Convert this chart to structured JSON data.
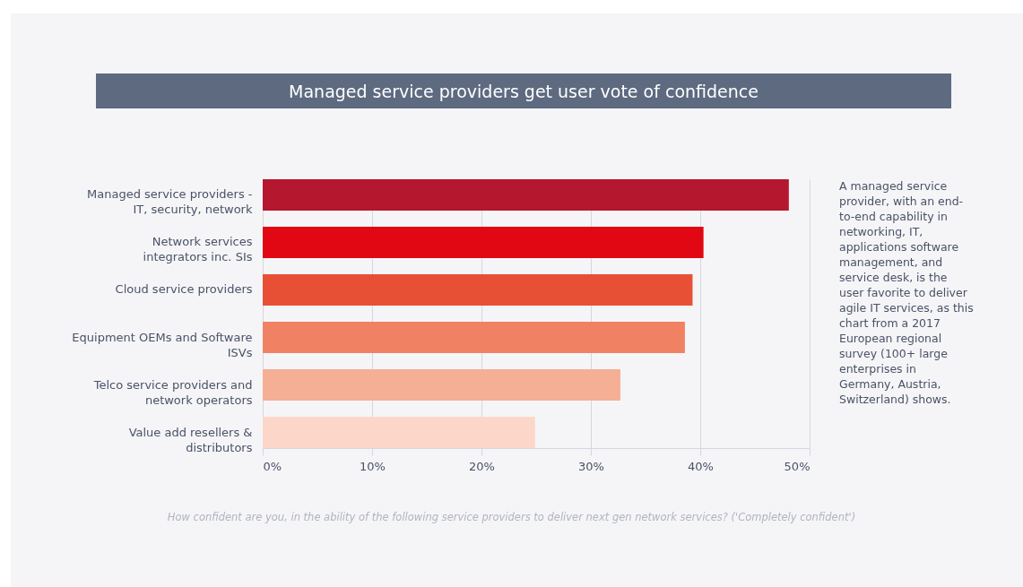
{
  "chart_data": {
    "type": "bar",
    "orientation": "horizontal",
    "title": "Managed service providers get user vote of confidence",
    "categories": [
      "Managed service providers - IT, security, network",
      "Network services integrators inc. SIs",
      "Cloud service providers",
      "Equipment OEMs and Software ISVs",
      "Telco service providers and network operators",
      "Value add resellers & distributors"
    ],
    "values": [
      48.1,
      40.3,
      39.3,
      38.6,
      32.7,
      24.9
    ],
    "colors": [
      "#b5172f",
      "#e10713",
      "#e85036",
      "#f08263",
      "#f5af95",
      "#fcd7c9"
    ],
    "xlim": [
      0,
      50
    ],
    "xticks": [
      {
        "value": 0,
        "label": "0%"
      },
      {
        "value": 10,
        "label": "10%"
      },
      {
        "value": 20,
        "label": "20%"
      },
      {
        "value": 30,
        "label": "30%"
      },
      {
        "value": 40,
        "label": "40%"
      },
      {
        "value": 50,
        "label": "50%"
      }
    ],
    "grid": "x",
    "annotations": [
      "A managed service provider, with an end-to-end capability in networking, IT, applications software management, and service desk, is the user favorite to deliver agile IT services, as this chart from a 2017 European regional survey (100+ large enterprises in Germany, Austria, Switzerland) shows.",
      "How confident are you, in the ability of the following service providers to deliver next gen network services? ('Completely confident')"
    ]
  }
}
